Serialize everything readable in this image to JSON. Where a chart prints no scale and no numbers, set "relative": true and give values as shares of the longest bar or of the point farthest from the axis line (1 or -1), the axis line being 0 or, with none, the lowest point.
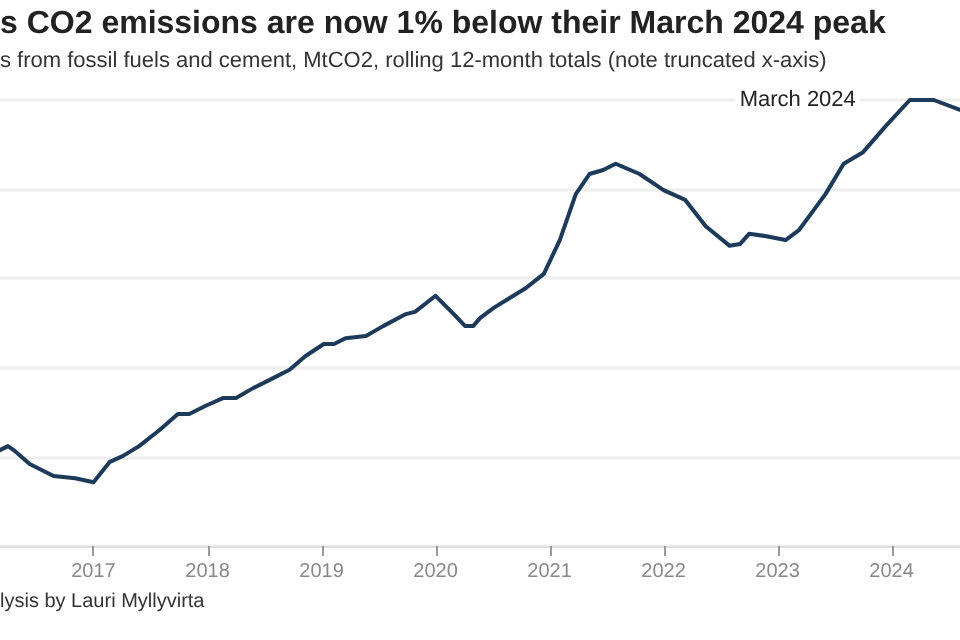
{
  "chart_data": {
    "type": "line",
    "title": "s CO2 emissions are now 1% below their March 2024 peak",
    "subtitle": "s from fossil fuels and cement, MtCO2, rolling 12-month totals (note truncated x-axis)",
    "relative": true,
    "grid": "y",
    "marker": "none",
    "line_style": "solid",
    "xlim": [
      2016.18,
      2024.6
    ],
    "xticks": [
      2017,
      2018,
      2019,
      2020,
      2021,
      2022,
      2023,
      2024
    ],
    "x": [
      2016.18,
      2016.25,
      2016.3,
      2016.44,
      2016.65,
      2016.84,
      2017.0,
      2017.14,
      2017.26,
      2017.4,
      2017.58,
      2017.74,
      2017.84,
      2017.98,
      2018.14,
      2018.25,
      2018.4,
      2018.58,
      2018.72,
      2018.86,
      2019.02,
      2019.11,
      2019.21,
      2019.39,
      2019.54,
      2019.74,
      2019.82,
      2020.0,
      2020.16,
      2020.26,
      2020.33,
      2020.39,
      2020.51,
      2020.65,
      2020.79,
      2020.95,
      2021.09,
      2021.23,
      2021.35,
      2021.47,
      2021.58,
      2021.79,
      2022.0,
      2022.19,
      2022.37,
      2022.58,
      2022.67,
      2022.75,
      2022.89,
      2023.07,
      2023.19,
      2023.42,
      2023.58,
      2023.75,
      2023.95,
      2024.16,
      2024.37,
      2024.6
    ],
    "series": [
      {
        "color": "#1d3a5a",
        "values": [
          0.215,
          0.224,
          0.215,
          0.184,
          0.157,
          0.152,
          0.143,
          0.188,
          0.202,
          0.224,
          0.26,
          0.296,
          0.296,
          0.314,
          0.332,
          0.332,
          0.354,
          0.377,
          0.395,
          0.426,
          0.453,
          0.453,
          0.466,
          0.471,
          0.493,
          0.52,
          0.525,
          0.561,
          0.52,
          0.493,
          0.493,
          0.511,
          0.534,
          0.556,
          0.578,
          0.61,
          0.686,
          0.789,
          0.834,
          0.843,
          0.857,
          0.834,
          0.798,
          0.776,
          0.717,
          0.673,
          0.677,
          0.7,
          0.695,
          0.686,
          0.709,
          0.789,
          0.857,
          0.883,
          0.942,
          1,
          1,
          0.978
        ]
      }
    ],
    "annotations": [
      {
        "text": "March 2024",
        "x": 2024.16,
        "y": 1
      },
      "lysis by Lauri Myllyvirta"
    ]
  }
}
